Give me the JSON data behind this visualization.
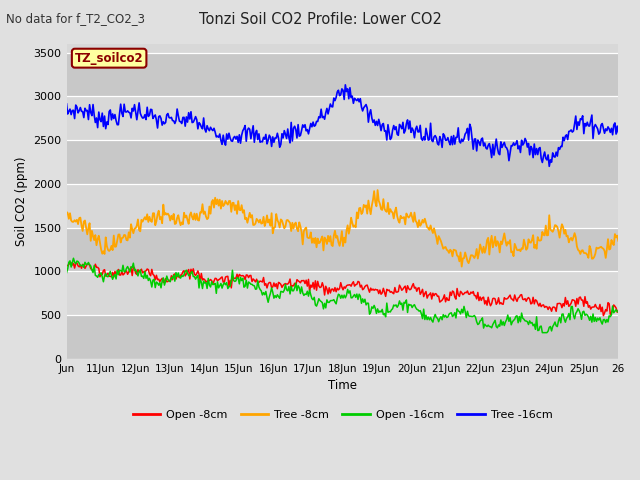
{
  "title": "Tonzi Soil CO2 Profile: Lower CO2",
  "subtitle": "No data for f_T2_CO2_3",
  "ylabel": "Soil CO2 (ppm)",
  "xlabel": "Time",
  "ylim": [
    0,
    3600
  ],
  "yticks": [
    0,
    500,
    1000,
    1500,
    2000,
    2500,
    3000,
    3500
  ],
  "x_labels": [
    "Jun",
    "11Jun",
    "12Jun",
    "13Jun",
    "14Jun",
    "15Jun",
    "16Jun",
    "17Jun",
    "18Jun",
    "19Jun",
    "20Jun",
    "21Jun",
    "22Jun",
    "23Jun",
    "24Jun",
    "25Jun",
    "26"
  ],
  "legend_labels": [
    "Open -8cm",
    "Tree -8cm",
    "Open -16cm",
    "Tree -16cm"
  ],
  "legend_colors": [
    "#ff0000",
    "#ffa500",
    "#00cc00",
    "#0000ff"
  ],
  "bg_color": "#e0e0e0",
  "plot_bg_color": "#d8d8d8",
  "stripe_color": "#c8c8c8",
  "label_box_color": "#ffffa0",
  "label_box_text": "TZ_soilco2",
  "label_box_text_color": "#8b0000",
  "n_points": 480
}
